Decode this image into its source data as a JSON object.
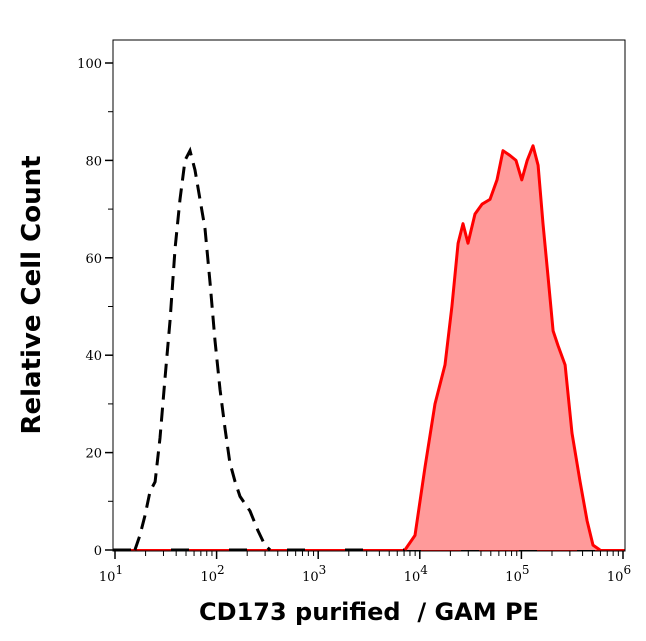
{
  "chart_data": {
    "type": "area",
    "title": "",
    "xlabel": "CD173 purified  / GAM PE",
    "ylabel": "Relative Cell Count",
    "xscale": "log",
    "xlim": [
      10,
      1000000
    ],
    "ylim": [
      0,
      105
    ],
    "x_ticks": [
      {
        "base": "10",
        "exp": "1"
      },
      {
        "base": "10",
        "exp": "2"
      },
      {
        "base": "10",
        "exp": "3"
      },
      {
        "base": "10",
        "exp": "4"
      },
      {
        "base": "10",
        "exp": "5"
      },
      {
        "base": "10",
        "exp": "6"
      }
    ],
    "y_ticks": [
      "0",
      "20",
      "40",
      "60",
      "80",
      "100"
    ],
    "grid": false,
    "legend": "none",
    "series": [
      {
        "style": "dashed-line",
        "color": "#000000",
        "filled": false,
        "x": [
          15.7,
          17.6,
          19.7,
          22.1,
          24.8,
          27.7,
          31.0,
          34.8,
          39.0,
          43.6,
          48.9,
          54.7,
          61.3,
          68.7,
          76.9,
          86.1,
          96.4,
          108,
          121,
          135,
          152,
          170,
          213,
          255,
          299,
          336
        ],
        "y": [
          0,
          3,
          7,
          12,
          14,
          23,
          35,
          47,
          62,
          72,
          80,
          82,
          78,
          72,
          66,
          55,
          43,
          33,
          25,
          18,
          14,
          11,
          8,
          4,
          1,
          0
        ]
      },
      {
        "style": "filled-area",
        "color": "#ff0000",
        "fill": "#ff9a9a",
        "filled": true,
        "x": [
          7140,
          8970,
          11250,
          14100,
          17700,
          20700,
          23800,
          26600,
          29800,
          34900,
          40900,
          49100,
          57500,
          65900,
          77200,
          88500,
          101000,
          114000,
          130000,
          146000,
          163000,
          183000,
          205000,
          229000,
          269000,
          315000,
          378000,
          443000,
          507000,
          594000
        ],
        "y": [
          0,
          3,
          17,
          30,
          38,
          50,
          63,
          67,
          63,
          69,
          71,
          72,
          76,
          82,
          81,
          80,
          76,
          80,
          83,
          79,
          67,
          56,
          45,
          42,
          38,
          24,
          14,
          6,
          1,
          0
        ]
      }
    ]
  }
}
